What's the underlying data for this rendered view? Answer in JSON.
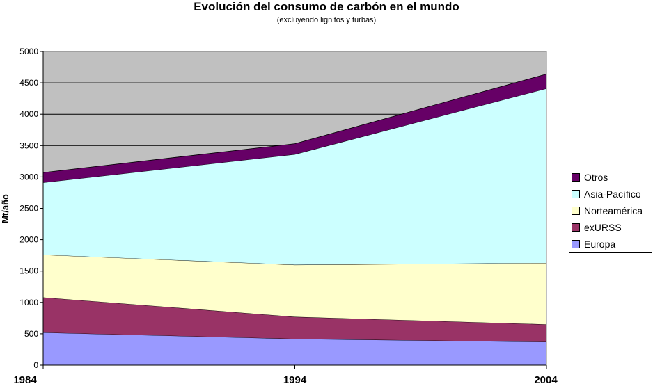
{
  "chart_data": {
    "type": "area",
    "stacked": true,
    "title": "Evolución del consumo de carbón en el mundo",
    "subtitle": "(excluyendo lignitos y turbas)",
    "ylabel": "Mt/año",
    "xlabel": "",
    "x": [
      "1984",
      "1994",
      "2004"
    ],
    "ylim": [
      0,
      5000
    ],
    "yticks": [
      0,
      500,
      1000,
      1500,
      2000,
      2500,
      3000,
      3500,
      4000,
      4500,
      5000
    ],
    "grid": true,
    "legend_position": "right",
    "plot_background": "#c0c0c0",
    "series": [
      {
        "name": "Europa",
        "color": "#9999ff",
        "values": [
          520,
          420,
          370
        ]
      },
      {
        "name": "exURSS",
        "color": "#993366",
        "values": [
          560,
          350,
          280
        ]
      },
      {
        "name": "Norteamérica",
        "color": "#ffffcc",
        "values": [
          680,
          830,
          980
        ]
      },
      {
        "name": "Asia-Pacífico",
        "color": "#ccffff",
        "values": [
          1150,
          1760,
          2780
        ]
      },
      {
        "name": "Otros",
        "color": "#660066",
        "values": [
          160,
          170,
          230
        ]
      }
    ]
  }
}
